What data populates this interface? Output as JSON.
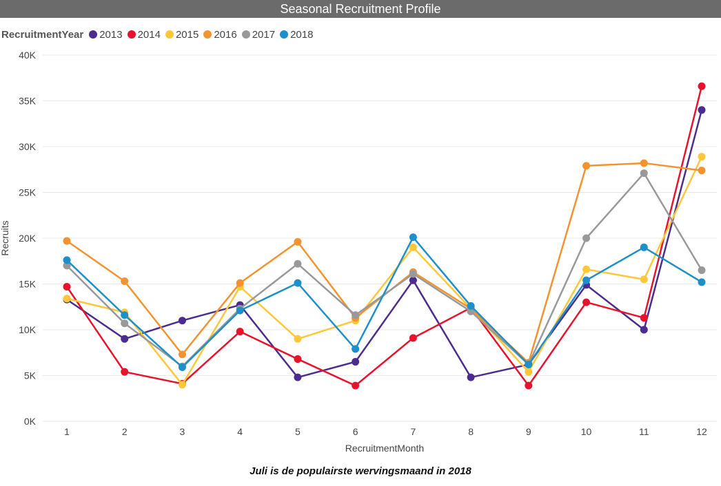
{
  "chart_data": {
    "type": "line",
    "title": "Seasonal Recruitment Profile",
    "legend_title": "RecruitmentYear",
    "legend_position": "top-left",
    "xlabel": "RecruitmentMonth",
    "ylabel": "Recruits",
    "x": [
      1,
      2,
      3,
      4,
      5,
      6,
      7,
      8,
      9,
      10,
      11,
      12
    ],
    "ylim": [
      0,
      40000
    ],
    "yticks": [
      "0K",
      "5K",
      "10K",
      "15K",
      "20K",
      "25K",
      "30K",
      "35K",
      "40K"
    ],
    "grid": true,
    "series": [
      {
        "name": "2013",
        "color": "#4b2c8f",
        "values": [
          13300,
          9000,
          11000,
          12700,
          4800,
          6500,
          15400,
          4800,
          6200,
          14900,
          10000,
          34000
        ]
      },
      {
        "name": "2014",
        "color": "#e8122d",
        "values": [
          14700,
          5400,
          4100,
          9800,
          6800,
          3900,
          9100,
          12400,
          3900,
          13000,
          11300,
          36600
        ]
      },
      {
        "name": "2015",
        "color": "#fdc73a",
        "values": [
          13400,
          11900,
          4000,
          14700,
          9000,
          11000,
          19000,
          12300,
          5400,
          16600,
          15500,
          28900
        ]
      },
      {
        "name": "2016",
        "color": "#f2932f",
        "values": [
          19700,
          15300,
          7300,
          15100,
          19600,
          11300,
          16300,
          12300,
          6400,
          27900,
          28200,
          27400
        ]
      },
      {
        "name": "2017",
        "color": "#999999",
        "values": [
          17000,
          10700,
          6000,
          12300,
          17200,
          11600,
          16100,
          12000,
          6200,
          20000,
          27100,
          16500
        ]
      },
      {
        "name": "2018",
        "color": "#1e90c9",
        "values": [
          17600,
          11600,
          5900,
          12100,
          15100,
          7900,
          20100,
          12600,
          6200,
          15400,
          19000,
          15200
        ]
      }
    ]
  },
  "caption": "Juli is de populairste wervingsmaand in 2018"
}
